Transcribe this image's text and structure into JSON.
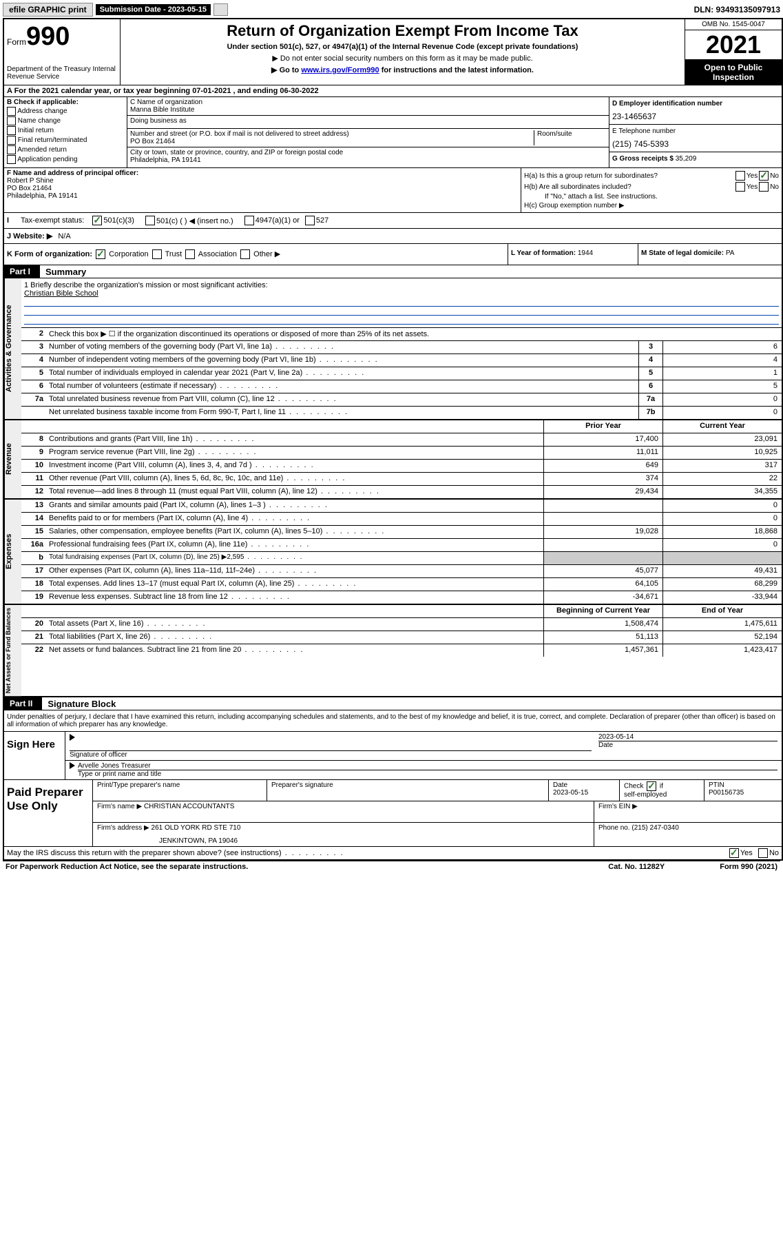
{
  "topbar": {
    "efile": "efile GRAPHIC print",
    "sub_label": "Submission Date - 2023-05-15",
    "dln": "DLN: 93493135097913"
  },
  "header": {
    "form_word": "Form",
    "form_num": "990",
    "dept": "Department of the Treasury\nInternal Revenue Service",
    "title": "Return of Organization Exempt From Income Tax",
    "subtitle": "Under section 501(c), 527, or 4947(a)(1) of the Internal Revenue Code (except private foundations)",
    "note1": "▶ Do not enter social security numbers on this form as it may be made public.",
    "note2_pre": "▶ Go to ",
    "note2_link": "www.irs.gov/Form990",
    "note2_post": " for instructions and the latest information.",
    "omb": "OMB No. 1545-0047",
    "year": "2021",
    "inspection": "Open to Public Inspection"
  },
  "rowA": {
    "text": "A For the 2021 calendar year, or tax year beginning 07-01-2021   , and ending 06-30-2022"
  },
  "B": {
    "hdr": "B Check if applicable:",
    "opts": [
      "Address change",
      "Name change",
      "Initial return",
      "Final return/terminated",
      "Amended return",
      "Application pending"
    ]
  },
  "C": {
    "name_lbl": "C Name of organization",
    "name_val": "Manna Bible Institute",
    "dba_lbl": "Doing business as",
    "addr_lbl": "Number and street (or P.O. box if mail is not delivered to street address)",
    "room_lbl": "Room/suite",
    "addr_val": "PO Box 21464",
    "city_lbl": "City or town, state or province, country, and ZIP or foreign postal code",
    "city_val": "Philadelphia, PA  19141"
  },
  "D": {
    "lbl": "D Employer identification number",
    "val": "23-1465637"
  },
  "E": {
    "lbl": "E Telephone number",
    "val": "(215) 745-5393"
  },
  "G": {
    "lbl": "G Gross receipts $",
    "val": "35,209"
  },
  "F": {
    "lbl": "F  Name and address of principal officer:",
    "name": "Robert P Shine",
    "addr1": "PO Box 21464",
    "addr2": "Philadelphia, PA  19141"
  },
  "H": {
    "a_lbl": "H(a)  Is this a group return for subordinates?",
    "b_lbl": "H(b)  Are all subordinates included?",
    "b_note": "If \"No,\" attach a list. See instructions.",
    "c_lbl": "H(c)  Group exemption number ▶",
    "yes": "Yes",
    "no": "No"
  },
  "I": {
    "lbl": "Tax-exempt status:",
    "opt1": "501(c)(3)",
    "opt2": "501(c) (    ) ◀ (insert no.)",
    "opt3": "4947(a)(1) or",
    "opt4": "527"
  },
  "J": {
    "lbl": "J Website: ▶",
    "val": "N/A"
  },
  "K": {
    "lbl": "K Form of organization:",
    "opts": [
      "Corporation",
      "Trust",
      "Association",
      "Other ▶"
    ]
  },
  "L": {
    "lbl": "L Year of formation:",
    "val": "1944"
  },
  "M": {
    "lbl": "M State of legal domicile:",
    "val": "PA"
  },
  "part1": {
    "tag": "Part I",
    "title": "Summary"
  },
  "mission": {
    "lbl": "1   Briefly describe the organization's mission or most significant activities:",
    "val": "Christian Bible School"
  },
  "line2": "Check this box ▶ ☐  if the organization discontinued its operations or disposed of more than 25% of its net assets.",
  "lines_gov": [
    {
      "n": "3",
      "d": "Number of voting members of the governing body (Part VI, line 1a)",
      "m": "3",
      "v": "6"
    },
    {
      "n": "4",
      "d": "Number of independent voting members of the governing body (Part VI, line 1b)",
      "m": "4",
      "v": "4"
    },
    {
      "n": "5",
      "d": "Total number of individuals employed in calendar year 2021 (Part V, line 2a)",
      "m": "5",
      "v": "1"
    },
    {
      "n": "6",
      "d": "Total number of volunteers (estimate if necessary)",
      "m": "6",
      "v": "5"
    },
    {
      "n": "7a",
      "d": "Total unrelated business revenue from Part VIII, column (C), line 12",
      "m": "7a",
      "v": "0"
    },
    {
      "n": "",
      "d": "Net unrelated business taxable income from Form 990-T, Part I, line 11",
      "m": "7b",
      "v": "0"
    }
  ],
  "col_hdr": {
    "prior": "Prior Year",
    "curr": "Current Year",
    "boy": "Beginning of Current Year",
    "eoy": "End of Year"
  },
  "lines_rev": [
    {
      "n": "8",
      "d": "Contributions and grants (Part VIII, line 1h)",
      "p": "17,400",
      "c": "23,091"
    },
    {
      "n": "9",
      "d": "Program service revenue (Part VIII, line 2g)",
      "p": "11,011",
      "c": "10,925"
    },
    {
      "n": "10",
      "d": "Investment income (Part VIII, column (A), lines 3, 4, and 7d )",
      "p": "649",
      "c": "317"
    },
    {
      "n": "11",
      "d": "Other revenue (Part VIII, column (A), lines 5, 6d, 8c, 9c, 10c, and 11e)",
      "p": "374",
      "c": "22"
    },
    {
      "n": "12",
      "d": "Total revenue—add lines 8 through 11 (must equal Part VIII, column (A), line 12)",
      "p": "29,434",
      "c": "34,355"
    }
  ],
  "lines_exp": [
    {
      "n": "13",
      "d": "Grants and similar amounts paid (Part IX, column (A), lines 1–3 )",
      "p": "",
      "c": "0"
    },
    {
      "n": "14",
      "d": "Benefits paid to or for members (Part IX, column (A), line 4)",
      "p": "",
      "c": "0"
    },
    {
      "n": "15",
      "d": "Salaries, other compensation, employee benefits (Part IX, column (A), lines 5–10)",
      "p": "19,028",
      "c": "18,868"
    },
    {
      "n": "16a",
      "d": "Professional fundraising fees (Part IX, column (A), line 11e)",
      "p": "",
      "c": "0"
    },
    {
      "n": "b",
      "d": "Total fundraising expenses (Part IX, column (D), line 25) ▶2,595",
      "p": "",
      "c": "",
      "shade": true,
      "small": true
    },
    {
      "n": "17",
      "d": "Other expenses (Part IX, column (A), lines 11a–11d, 11f–24e)",
      "p": "45,077",
      "c": "49,431"
    },
    {
      "n": "18",
      "d": "Total expenses. Add lines 13–17 (must equal Part IX, column (A), line 25)",
      "p": "64,105",
      "c": "68,299"
    },
    {
      "n": "19",
      "d": "Revenue less expenses. Subtract line 18 from line 12",
      "p": "-34,671",
      "c": "-33,944"
    }
  ],
  "lines_na": [
    {
      "n": "20",
      "d": "Total assets (Part X, line 16)",
      "p": "1,508,474",
      "c": "1,475,611"
    },
    {
      "n": "21",
      "d": "Total liabilities (Part X, line 26)",
      "p": "51,113",
      "c": "52,194"
    },
    {
      "n": "22",
      "d": "Net assets or fund balances. Subtract line 21 from line 20",
      "p": "1,457,361",
      "c": "1,423,417"
    }
  ],
  "vtabs": {
    "gov": "Activities & Governance",
    "rev": "Revenue",
    "exp": "Expenses",
    "na": "Net Assets or Fund Balances"
  },
  "part2": {
    "tag": "Part II",
    "title": "Signature Block"
  },
  "sig": {
    "intro": "Under penalties of perjury, I declare that I have examined this return, including accompanying schedules and statements, and to the best of my knowledge and belief, it is true, correct, and complete. Declaration of preparer (other than officer) is based on all information of which preparer has any knowledge.",
    "sign_here": "Sign Here",
    "sig_officer": "Signature of officer",
    "date": "Date",
    "date_val": "2023-05-14",
    "name_val": "Arvelle Jones  Treasurer",
    "name_lbl": "Type or print name and title"
  },
  "prep": {
    "title": "Paid Preparer Use Only",
    "h1": "Print/Type preparer's name",
    "h2": "Preparer's signature",
    "h3": "Date",
    "h3v": "2023-05-15",
    "h4": "Check ☑ if self-employed",
    "h5": "PTIN",
    "h5v": "P00156735",
    "firm_lbl": "Firm's name    ▶",
    "firm_val": "CHRISTIAN ACCOUNTANTS",
    "ein_lbl": "Firm's EIN ▶",
    "addr_lbl": "Firm's address ▶",
    "addr_val": "261 OLD YORK RD STE 710",
    "addr_val2": "JENKINTOWN, PA  19046",
    "phone_lbl": "Phone no.",
    "phone_val": "(215) 247-0340"
  },
  "footer": {
    "q": "May the IRS discuss this return with the preparer shown above? (see instructions)",
    "yes": "Yes",
    "no": "No",
    "pra": "For Paperwork Reduction Act Notice, see the separate instructions.",
    "cat": "Cat. No. 11282Y",
    "form": "Form 990 (2021)"
  }
}
